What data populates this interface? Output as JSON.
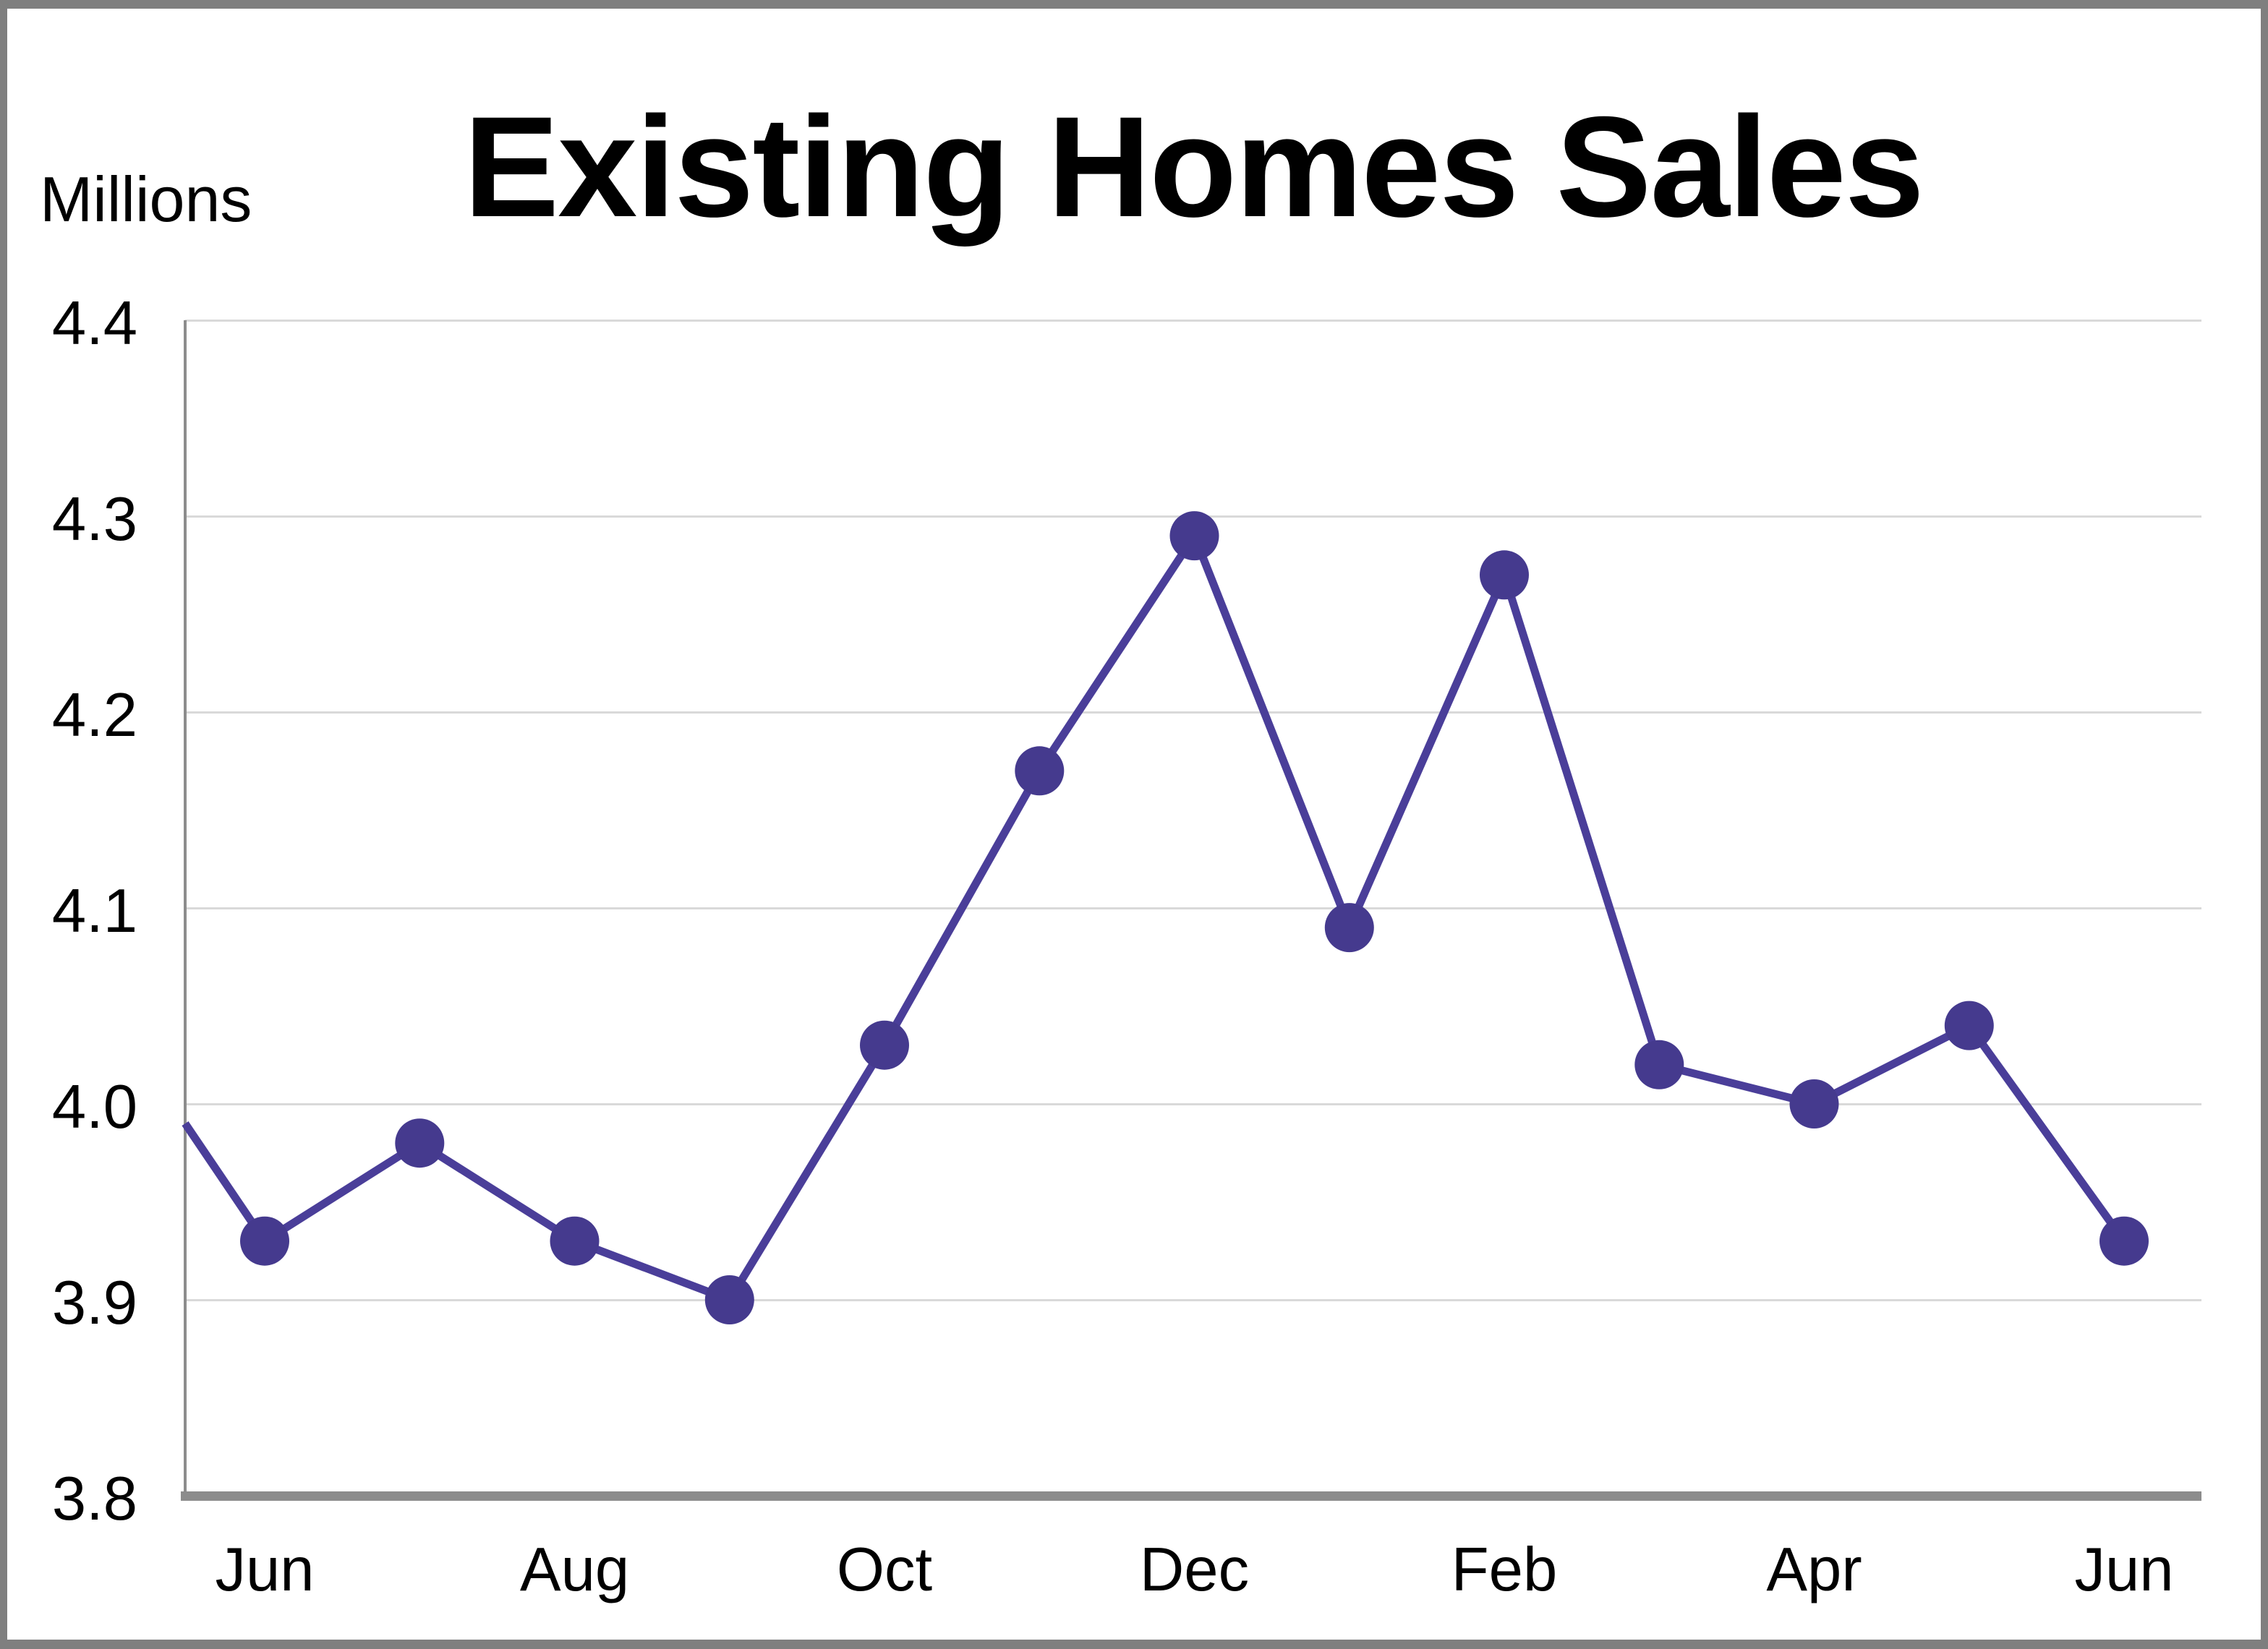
{
  "window": {
    "frame_color": "#7f7f7f",
    "background_color": "#ffffff"
  },
  "chart_data": {
    "type": "line",
    "title": "Existing Homes Sales",
    "ylabel": "Millions",
    "xlabel": "",
    "ylim": [
      3.8,
      4.4
    ],
    "grid": true,
    "legend": "none",
    "y_ticks": [
      "4.4",
      "4.3",
      "4.2",
      "4.1",
      "4.0",
      "3.9",
      "3.8"
    ],
    "x_ticks": [
      {
        "label": "Jun",
        "slot": 0
      },
      {
        "label": "Aug",
        "slot": 2
      },
      {
        "label": "Oct",
        "slot": 4
      },
      {
        "label": "Dec",
        "slot": 6
      },
      {
        "label": "Feb",
        "slot": 8
      },
      {
        "label": "Apr",
        "slot": 10
      },
      {
        "label": "Jun",
        "slot": 12
      }
    ],
    "categories": [
      "Jun",
      "Jul",
      "Aug",
      "Sep",
      "Oct",
      "Nov",
      "Dec",
      "Jan",
      "Feb",
      "Mar",
      "Apr",
      "May",
      "Jun"
    ],
    "values": [
      3.93,
      3.98,
      3.93,
      3.9,
      4.03,
      4.17,
      4.29,
      4.09,
      4.27,
      4.02,
      4.0,
      4.04,
      3.93
    ],
    "left_edge_entry_value": 3.99,
    "colors": {
      "line": "#4a3e99",
      "marker": "#453a8e",
      "gridline": "#d9d9d9",
      "axis": "#8c8c8c",
      "text": "#000000"
    }
  }
}
